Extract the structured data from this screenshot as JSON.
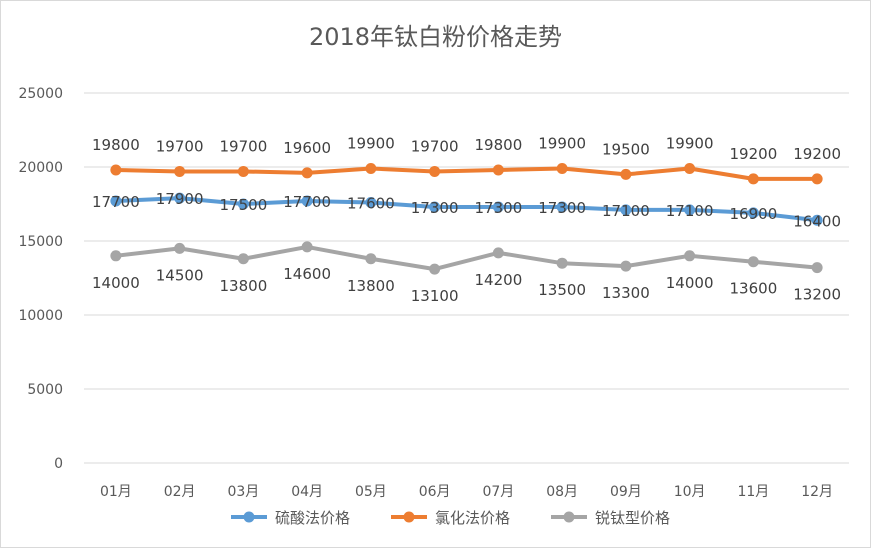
{
  "chart_data": {
    "type": "line",
    "title": "2018年钛白粉价格走势",
    "xlabel": "",
    "ylabel": "",
    "categories": [
      "01月",
      "02月",
      "03月",
      "04月",
      "05月",
      "06月",
      "07月",
      "08月",
      "09月",
      "10月",
      "11月",
      "12月"
    ],
    "ylim": [
      0,
      25000
    ],
    "yticks": [
      0,
      5000,
      10000,
      15000,
      20000,
      25000
    ],
    "grid": true,
    "legend_position": "bottom",
    "series": [
      {
        "name": "硫酸法价格",
        "color": "#5b9bd5",
        "label_position": "center",
        "values": [
          17700,
          17900,
          17500,
          17700,
          17600,
          17300,
          17300,
          17300,
          17100,
          17100,
          16900,
          16400
        ]
      },
      {
        "name": "氯化法价格",
        "color": "#ed7d31",
        "label_position": "above",
        "values": [
          19800,
          19700,
          19700,
          19600,
          19900,
          19700,
          19800,
          19900,
          19500,
          19900,
          19200,
          19200
        ]
      },
      {
        "name": "锐钛型价格",
        "color": "#a5a5a5",
        "label_position": "below",
        "values": [
          14000,
          14500,
          13800,
          14600,
          13800,
          13100,
          14200,
          13500,
          13300,
          14000,
          13600,
          13200
        ]
      }
    ]
  }
}
